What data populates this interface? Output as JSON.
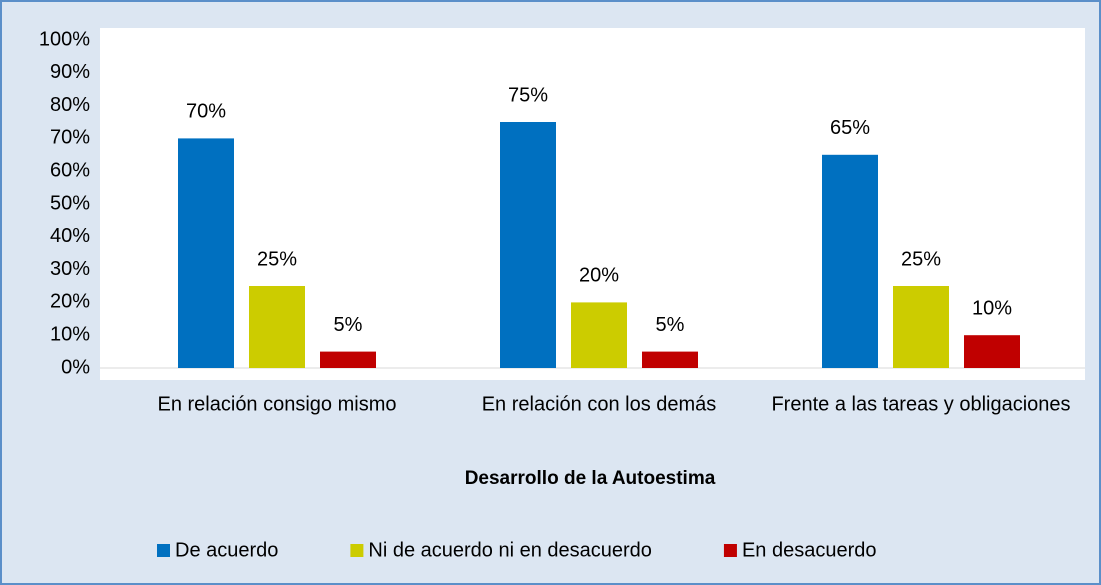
{
  "chart_data": {
    "type": "bar",
    "x_label": "Desarrollo de la Autoestima",
    "categories": [
      "En relación consigo mismo",
      "En relación con los demás",
      "Frente a las tareas y obligaciones"
    ],
    "series": [
      {
        "name": "De acuerdo",
        "color": "#0070c0",
        "values": [
          70,
          75,
          65
        ],
        "value_labels": [
          "70%",
          "75%",
          "65%"
        ]
      },
      {
        "name": "Ni de acuerdo ni en desacuerdo",
        "color": "#cccc00",
        "values": [
          25,
          20,
          25
        ],
        "value_labels": [
          "25%",
          "20%",
          "25%"
        ]
      },
      {
        "name": "En desacuerdo",
        "color": "#c00000",
        "values": [
          5,
          5,
          10
        ],
        "value_labels": [
          "5%",
          "5%",
          "10%"
        ]
      }
    ],
    "ylim": [
      0,
      100
    ],
    "yticks": [
      {
        "value": 0,
        "label": "0%"
      },
      {
        "value": 10,
        "label": "10%"
      },
      {
        "value": 20,
        "label": "20%"
      },
      {
        "value": 30,
        "label": "30%"
      },
      {
        "value": 40,
        "label": "40%"
      },
      {
        "value": 50,
        "label": "50%"
      },
      {
        "value": 60,
        "label": "60%"
      },
      {
        "value": 70,
        "label": "70%"
      },
      {
        "value": 80,
        "label": "80%"
      },
      {
        "value": 90,
        "label": "90%"
      },
      {
        "value": 100,
        "label": "100%"
      }
    ],
    "grid": false,
    "legend": "bottom"
  }
}
